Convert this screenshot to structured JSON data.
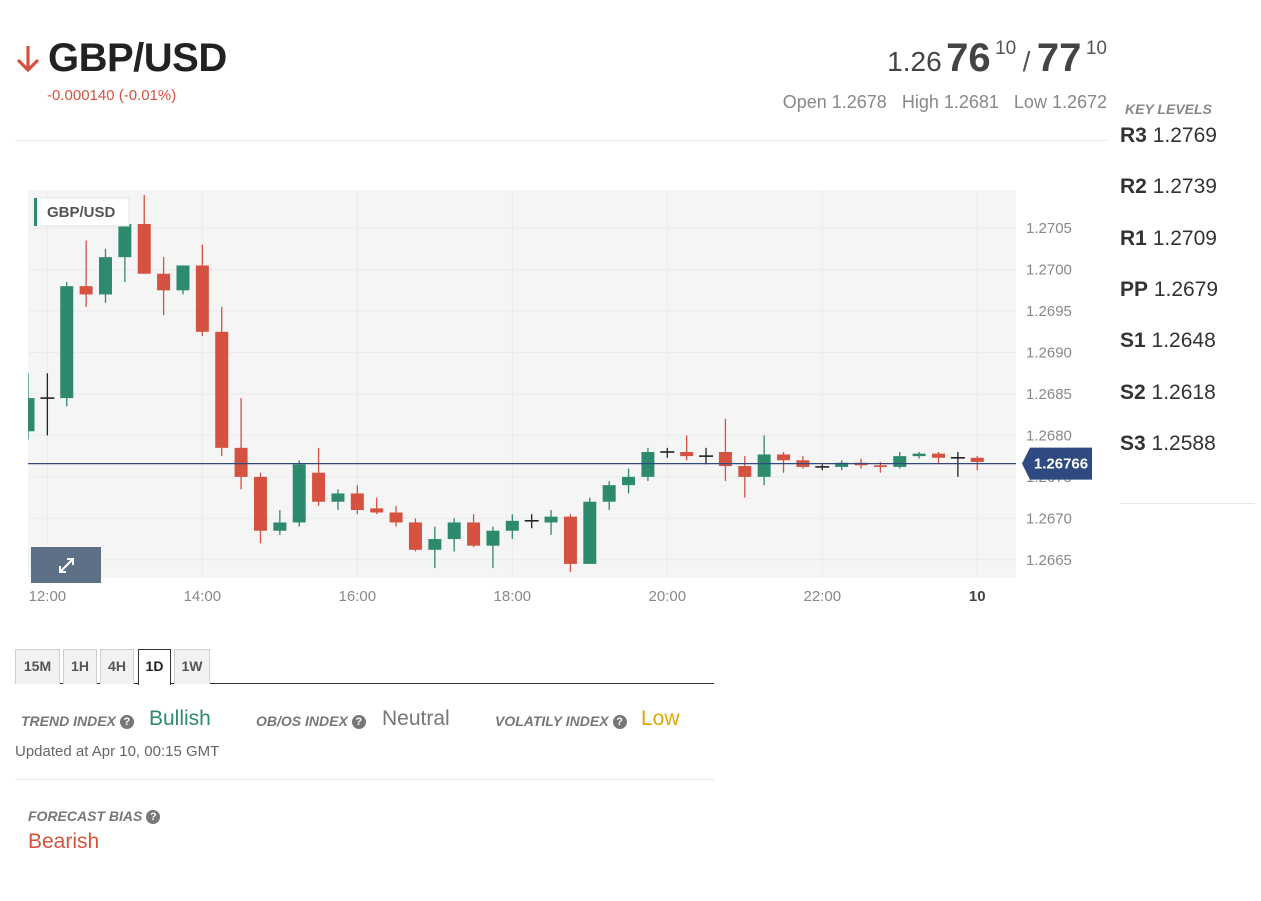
{
  "header": {
    "symbol": "GBP/USD",
    "direction": "down",
    "change": "-0.000140 (-0.01%)",
    "colors": {
      "down": "#d4523f",
      "up": "#2e8a6e"
    }
  },
  "quote": {
    "bid_prefix": "1.26",
    "bid_big": "76",
    "bid_sup": "10",
    "separator": "/",
    "ask_big": "77",
    "ask_sup": "10",
    "open": "Open 1.2678",
    "high": "High 1.2681",
    "low": "Low 1.2672"
  },
  "key_levels": {
    "title": "KEY LEVELS",
    "items": [
      {
        "name": "R3",
        "value": "1.2769"
      },
      {
        "name": "R2",
        "value": "1.2739"
      },
      {
        "name": "R1",
        "value": "1.2709"
      },
      {
        "name": "PP",
        "value": "1.2679"
      },
      {
        "name": "S1",
        "value": "1.2648"
      },
      {
        "name": "S2",
        "value": "1.2618"
      },
      {
        "name": "S3",
        "value": "1.2588"
      }
    ]
  },
  "chart_data": {
    "type": "candlestick",
    "legend": "GBP/USD",
    "current_price": 1.26766,
    "current_price_label": "1.26766",
    "y_ticks": [
      "1.2705",
      "1.2700",
      "1.2695",
      "1.2690",
      "1.2685",
      "1.2680",
      "1.2675",
      "1.2670",
      "1.2665"
    ],
    "x_ticks": [
      "12:00",
      "14:00",
      "16:00",
      "18:00",
      "20:00",
      "22:00",
      "10"
    ],
    "x_tick_hours": [
      12,
      14,
      16,
      18,
      20,
      22,
      24
    ],
    "x_range_hours": [
      11.75,
      24.5
    ],
    "y_range": [
      1.26628,
      1.27096
    ],
    "grid": true,
    "colors": {
      "up": "#2e8a6e",
      "down": "#d4523f",
      "doji": "#222222",
      "price_line": "#2f4a80",
      "price_tag": "#2f4a80",
      "background": "#f5f5f5",
      "expand_button": "#5e7086"
    },
    "candles": [
      {
        "t": "11:45",
        "o": 1.26805,
        "h": 1.26875,
        "l": 1.26795,
        "c": 1.26845
      },
      {
        "t": "12:00",
        "o": 1.26845,
        "h": 1.26875,
        "l": 1.268,
        "c": 1.26845
      },
      {
        "t": "12:15",
        "o": 1.26845,
        "h": 1.26985,
        "l": 1.26835,
        "c": 1.2698
      },
      {
        "t": "12:30",
        "o": 1.2698,
        "h": 1.27035,
        "l": 1.26955,
        "c": 1.2697
      },
      {
        "t": "12:45",
        "o": 1.2697,
        "h": 1.27025,
        "l": 1.2696,
        "c": 1.27015
      },
      {
        "t": "13:00",
        "o": 1.27015,
        "h": 1.2708,
        "l": 1.26985,
        "c": 1.27055
      },
      {
        "t": "13:15",
        "o": 1.27055,
        "h": 1.2709,
        "l": 1.26995,
        "c": 1.26995
      },
      {
        "t": "13:30",
        "o": 1.26995,
        "h": 1.27015,
        "l": 1.26945,
        "c": 1.26975
      },
      {
        "t": "13:45",
        "o": 1.26975,
        "h": 1.27005,
        "l": 1.2697,
        "c": 1.27005
      },
      {
        "t": "14:00",
        "o": 1.27005,
        "h": 1.2703,
        "l": 1.2692,
        "c": 1.26925
      },
      {
        "t": "14:15",
        "o": 1.26925,
        "h": 1.26955,
        "l": 1.26775,
        "c": 1.26785
      },
      {
        "t": "14:30",
        "o": 1.26785,
        "h": 1.26845,
        "l": 1.26735,
        "c": 1.2675
      },
      {
        "t": "14:45",
        "o": 1.2675,
        "h": 1.26755,
        "l": 1.2667,
        "c": 1.26685
      },
      {
        "t": "15:00",
        "o": 1.26685,
        "h": 1.2671,
        "l": 1.2668,
        "c": 1.26695
      },
      {
        "t": "15:15",
        "o": 1.26695,
        "h": 1.2677,
        "l": 1.2669,
        "c": 1.26765
      },
      {
        "t": "15:30",
        "o": 1.26755,
        "h": 1.26785,
        "l": 1.26715,
        "c": 1.2672
      },
      {
        "t": "15:45",
        "o": 1.2672,
        "h": 1.26735,
        "l": 1.2671,
        "c": 1.2673
      },
      {
        "t": "16:00",
        "o": 1.2673,
        "h": 1.2674,
        "l": 1.26705,
        "c": 1.2671
      },
      {
        "t": "16:15",
        "o": 1.26712,
        "h": 1.26725,
        "l": 1.26705,
        "c": 1.26707
      },
      {
        "t": "16:30",
        "o": 1.26707,
        "h": 1.26715,
        "l": 1.2669,
        "c": 1.26695
      },
      {
        "t": "16:45",
        "o": 1.26695,
        "h": 1.267,
        "l": 1.2666,
        "c": 1.26662
      },
      {
        "t": "17:00",
        "o": 1.26662,
        "h": 1.2669,
        "l": 1.2664,
        "c": 1.26675
      },
      {
        "t": "17:15",
        "o": 1.26675,
        "h": 1.267,
        "l": 1.2666,
        "c": 1.26695
      },
      {
        "t": "17:30",
        "o": 1.26695,
        "h": 1.26705,
        "l": 1.26665,
        "c": 1.26667
      },
      {
        "t": "17:45",
        "o": 1.26667,
        "h": 1.2669,
        "l": 1.2664,
        "c": 1.26685
      },
      {
        "t": "18:00",
        "o": 1.26685,
        "h": 1.26705,
        "l": 1.26675,
        "c": 1.26697
      },
      {
        "t": "18:15",
        "o": 1.26697,
        "h": 1.26705,
        "l": 1.26688,
        "c": 1.26697
      },
      {
        "t": "18:30",
        "o": 1.26695,
        "h": 1.2671,
        "l": 1.2668,
        "c": 1.26702
      },
      {
        "t": "18:45",
        "o": 1.26702,
        "h": 1.26705,
        "l": 1.26635,
        "c": 1.26645
      },
      {
        "t": "19:00",
        "o": 1.26645,
        "h": 1.26725,
        "l": 1.26645,
        "c": 1.2672
      },
      {
        "t": "19:15",
        "o": 1.2672,
        "h": 1.26745,
        "l": 1.2671,
        "c": 1.2674
      },
      {
        "t": "19:30",
        "o": 1.2674,
        "h": 1.2676,
        "l": 1.2673,
        "c": 1.2675
      },
      {
        "t": "19:45",
        "o": 1.2675,
        "h": 1.26785,
        "l": 1.26745,
        "c": 1.2678
      },
      {
        "t": "20:00",
        "o": 1.2678,
        "h": 1.26785,
        "l": 1.26773,
        "c": 1.2678
      },
      {
        "t": "20:15",
        "o": 1.2678,
        "h": 1.268,
        "l": 1.2677,
        "c": 1.26775
      },
      {
        "t": "20:30",
        "o": 1.26775,
        "h": 1.26785,
        "l": 1.26765,
        "c": 1.26775
      },
      {
        "t": "20:45",
        "o": 1.2678,
        "h": 1.2682,
        "l": 1.26745,
        "c": 1.26763
      },
      {
        "t": "21:00",
        "o": 1.26763,
        "h": 1.26775,
        "l": 1.26725,
        "c": 1.2675
      },
      {
        "t": "21:15",
        "o": 1.2675,
        "h": 1.268,
        "l": 1.2674,
        "c": 1.26777
      },
      {
        "t": "21:30",
        "o": 1.26777,
        "h": 1.2678,
        "l": 1.26755,
        "c": 1.2677
      },
      {
        "t": "21:45",
        "o": 1.2677,
        "h": 1.26775,
        "l": 1.2676,
        "c": 1.26762
      },
      {
        "t": "22:00",
        "o": 1.26762,
        "h": 1.26765,
        "l": 1.26758,
        "c": 1.26762
      },
      {
        "t": "22:15",
        "o": 1.26762,
        "h": 1.2677,
        "l": 1.26758,
        "c": 1.26767
      },
      {
        "t": "22:30",
        "o": 1.26767,
        "h": 1.26772,
        "l": 1.2676,
        "c": 1.26764
      },
      {
        "t": "22:45",
        "o": 1.26764,
        "h": 1.26768,
        "l": 1.26755,
        "c": 1.26762
      },
      {
        "t": "23:00",
        "o": 1.26762,
        "h": 1.2678,
        "l": 1.2676,
        "c": 1.26775
      },
      {
        "t": "23:15",
        "o": 1.26775,
        "h": 1.2678,
        "l": 1.26772,
        "c": 1.26778
      },
      {
        "t": "23:30",
        "o": 1.26778,
        "h": 1.2678,
        "l": 1.26765,
        "c": 1.26773
      },
      {
        "t": "23:45",
        "o": 1.26773,
        "h": 1.2678,
        "l": 1.2675,
        "c": 1.26773
      },
      {
        "t": "00:00",
        "o": 1.26773,
        "h": 1.26775,
        "l": 1.26758,
        "c": 1.26768
      }
    ]
  },
  "timeframes": [
    "15M",
    "1H",
    "4H",
    "1D",
    "1W"
  ],
  "active_timeframe": "1D",
  "indices": {
    "trend": {
      "label": "TREND INDEX",
      "value": "Bullish",
      "color": "#2e8a6e"
    },
    "obos": {
      "label": "OB/OS INDEX",
      "value": "Neutral",
      "color": "#777777"
    },
    "volatility": {
      "label": "VOLATILY INDEX",
      "value": "Low",
      "color": "#e0a800"
    },
    "help_icon": "question-icon",
    "updated": "Updated at Apr 10, 00:15 GMT"
  },
  "forecast": {
    "label": "FORECAST BIAS",
    "value": "Bearish",
    "color": "#d4523f"
  }
}
